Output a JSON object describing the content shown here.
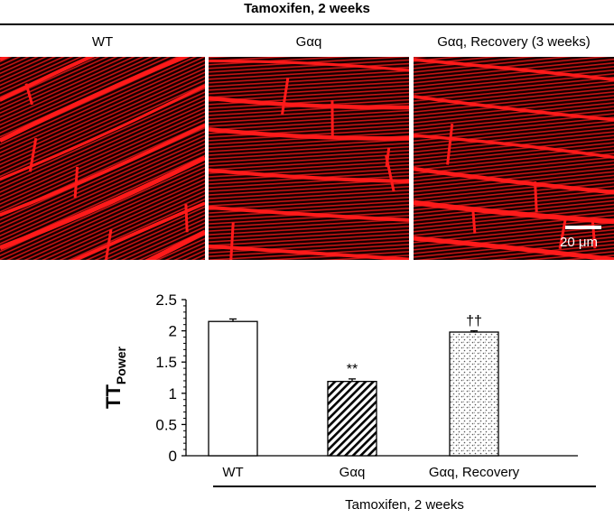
{
  "header": {
    "title": "Tamoxifen, 2 weeks"
  },
  "panels": [
    {
      "label": "WT"
    },
    {
      "label": "Gαq"
    },
    {
      "label": "Gαq, Recovery (3 weeks)"
    }
  ],
  "scale_bar": {
    "label": "20 μm",
    "color": "#ffffff"
  },
  "image_color": "#ff1a1a",
  "chart_data": {
    "type": "bar",
    "categories": [
      "WT",
      "Gαq",
      "Gαq, Recovery"
    ],
    "values": [
      2.15,
      1.19,
      1.98
    ],
    "errors": [
      0.04,
      0.04,
      0.02
    ],
    "patterns": [
      "solid-white",
      "diagonal-hatch",
      "stipple"
    ],
    "annotations": [
      "",
      "**",
      "††"
    ],
    "ylabel": "TT",
    "ylabel_subscript": "Power",
    "ylim": [
      0,
      2.5
    ],
    "yticks": [
      "0",
      "0.5",
      "1",
      "1.5",
      "2",
      "2.5"
    ],
    "xgroup_label": "Tamoxifen, 2 weeks"
  }
}
